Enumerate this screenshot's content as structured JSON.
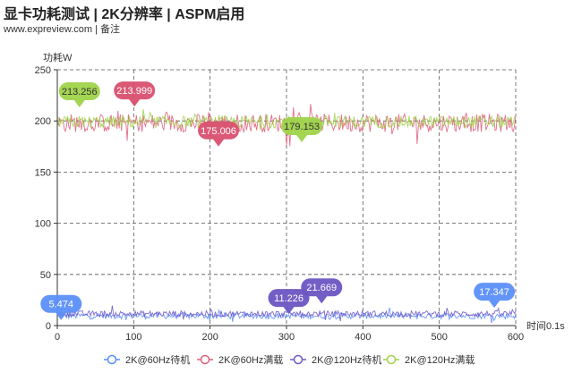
{
  "header": {
    "title": "显卡功耗测试 | 2K分辨率 | ASPM启用",
    "subtitle": "www.expreview.com | 备注"
  },
  "chart_data": {
    "type": "line",
    "title": "显卡功耗测试 | 2K分辨率 | ASPM启用",
    "ylabel": "功耗W",
    "xlabel": "时间0.1s",
    "xlim": [
      0,
      600
    ],
    "ylim": [
      0,
      250
    ],
    "xticks": [
      0,
      100,
      200,
      300,
      400,
      500,
      600
    ],
    "yticks": [
      0,
      50,
      100,
      150,
      200,
      250
    ],
    "grid": true,
    "legend_position": "bottom",
    "series": [
      {
        "name": "2K@60Hz待机",
        "color": "#5b8ff9",
        "approx_level": 9.5,
        "approx_noise": 3,
        "markers": [
          {
            "label": "5.474",
            "x": 5,
            "y": 5.474,
            "color": "#5b8ff9"
          },
          {
            "label": "17.347",
            "x": 572,
            "y": 17.347,
            "color": "#5b8ff9"
          }
        ]
      },
      {
        "name": "2K@60Hz满载",
        "color": "#e0607e",
        "approx_level": 198,
        "approx_noise": 9,
        "markers": [
          {
            "label": "213.999",
            "x": 101,
            "y": 213.999,
            "color": "#d9506f"
          },
          {
            "label": "175.006",
            "x": 211,
            "y": 175.006,
            "color": "#d9506f"
          }
        ]
      },
      {
        "name": "2K@120Hz待机",
        "color": "#6f5ac6",
        "approx_level": 11.5,
        "approx_noise": 3,
        "markers": [
          {
            "label": "11.226",
            "x": 303,
            "y": 11.226,
            "color": "#6a55c2"
          },
          {
            "label": "21.669",
            "x": 346,
            "y": 21.669,
            "color": "#6a55c2"
          }
        ]
      },
      {
        "name": "2K@120Hz满载",
        "color": "#9fd34a",
        "approx_level": 199,
        "approx_noise": 6,
        "markers": [
          {
            "label": "213.256",
            "x": 29,
            "y": 213.256,
            "color": "#9fd34a"
          },
          {
            "label": "179.153",
            "x": 320,
            "y": 179.153,
            "color": "#9fd34a"
          }
        ]
      }
    ]
  }
}
